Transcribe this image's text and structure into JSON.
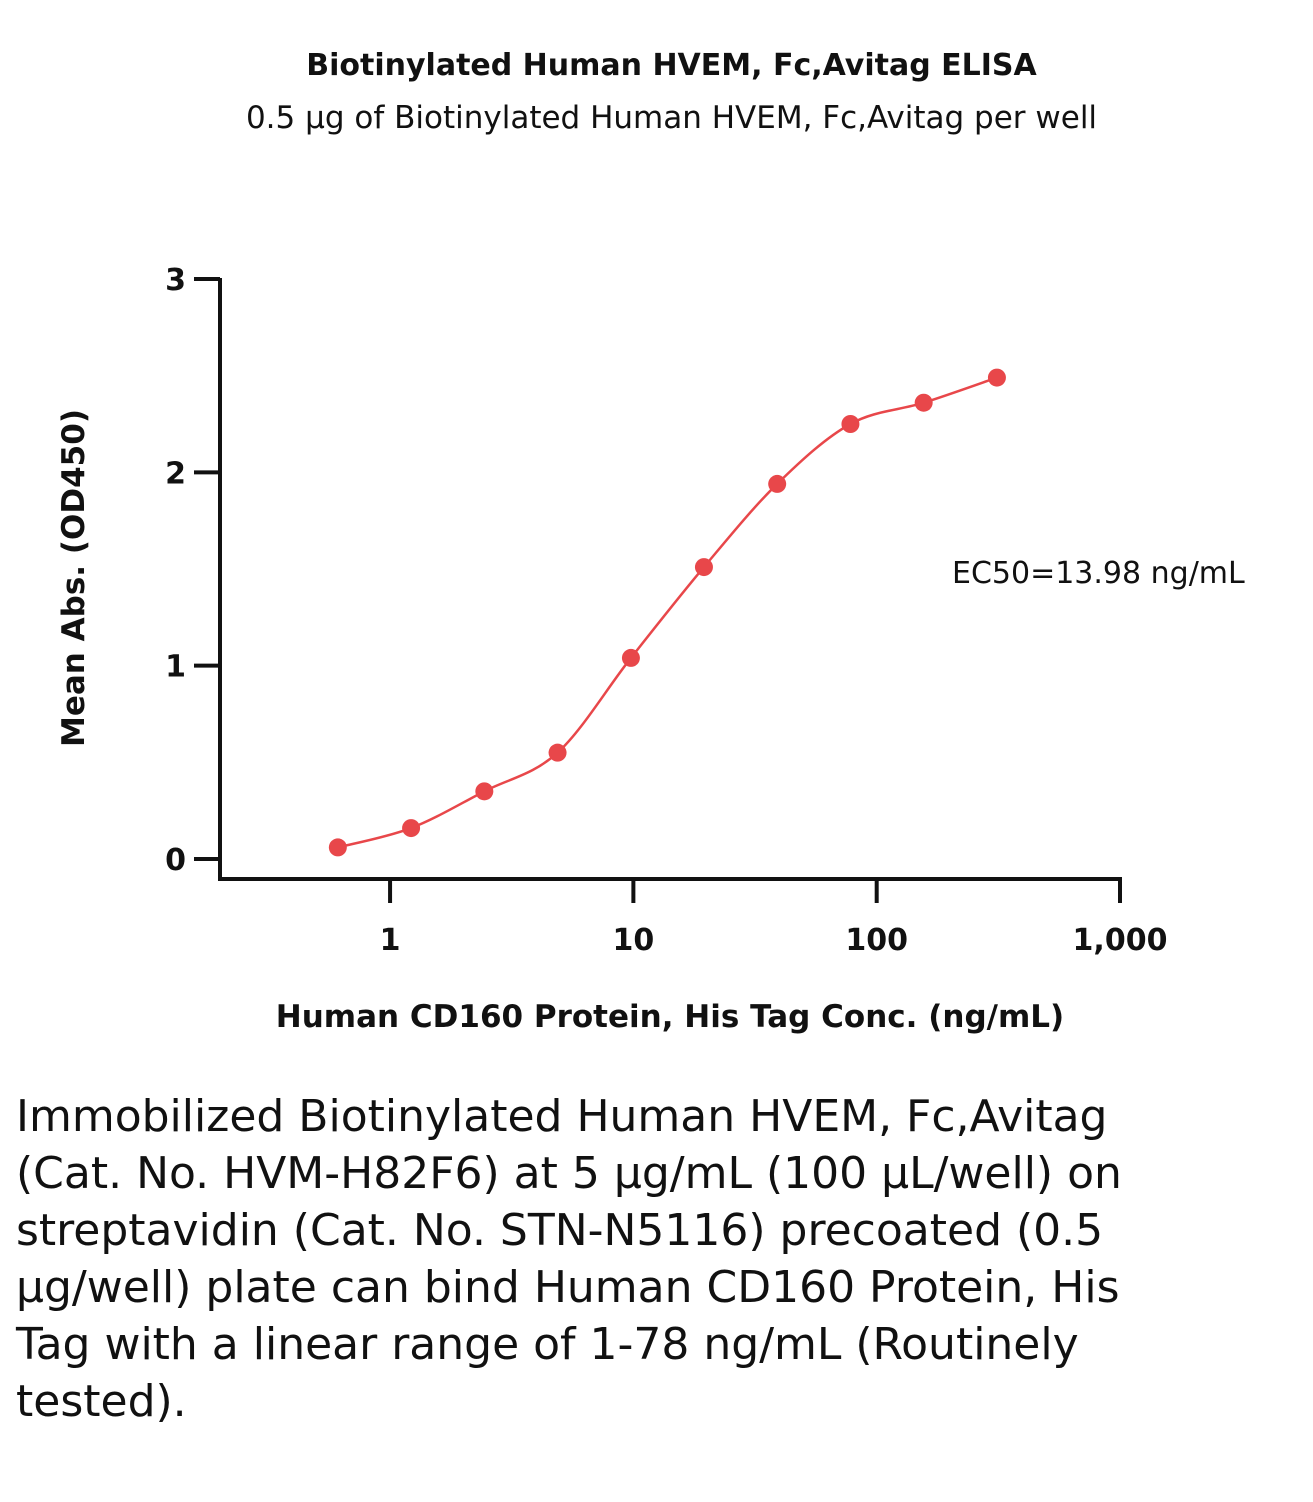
{
  "caption": "Immobilized Biotinylated Human HVEM, Fc,Avitag (Cat. No. HVM-H82F6) at 5 µg/mL (100 µL/well) on streptavidin (Cat. No. STN-N5116) precoated (0.5 µg/well) plate can bind Human CD160 Protein, His Tag with a linear range of 1-78 ng/mL (Routinely tested).",
  "chart_data": {
    "type": "scatter",
    "title": "Biotinylated Human HVEM, Fc,Avitag ELISA",
    "subtitle": "0.5 µg of Biotinylated Human HVEM, Fc,Avitag per well",
    "xlabel": "Human CD160 Protein, His Tag Conc. (ng/mL)",
    "ylabel": "Mean Abs. (OD450)",
    "x_scale": "log",
    "xlim": [
      0.2,
      1000
    ],
    "ylim": [
      0,
      3
    ],
    "x_ticks": [
      1,
      10,
      100,
      1000
    ],
    "x_tick_labels": [
      "1",
      "10",
      "100",
      "1,000"
    ],
    "y_ticks": [
      0,
      1,
      2,
      3
    ],
    "y_tick_labels": [
      "0",
      "1",
      "2",
      "3"
    ],
    "grid": false,
    "color": "#e8474a",
    "series": [
      {
        "x": [
          0.61,
          1.22,
          2.44,
          4.88,
          9.77,
          19.5,
          39,
          78,
          156,
          312
        ],
        "y": [
          0.06,
          0.16,
          0.35,
          0.55,
          1.04,
          1.51,
          1.94,
          2.25,
          2.36,
          2.49
        ]
      }
    ],
    "annotation": "EC50=13.98 ng/mL"
  }
}
